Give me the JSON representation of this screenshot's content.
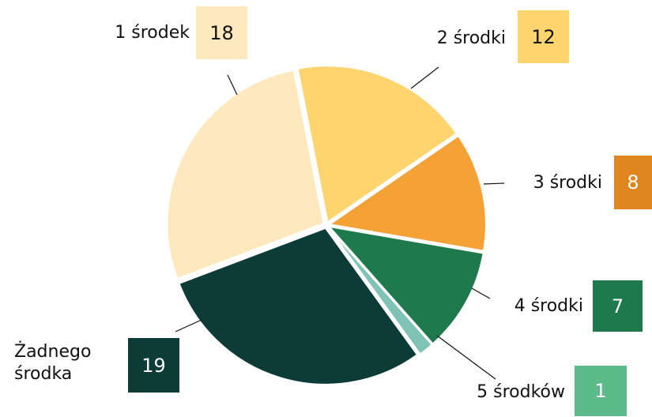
{
  "chart_data": {
    "type": "pie",
    "categories": [
      "2 środki",
      "3 środki",
      "4 środki",
      "5 środków",
      "Żadnego środka",
      "1 środek"
    ],
    "values": [
      12,
      8,
      7,
      1,
      19,
      18
    ],
    "colors": [
      "#fed46e",
      "#f4a136",
      "#1e7a4c",
      "#7fc3b5",
      "#0c3b38",
      "#fde9bd"
    ],
    "label_box_colors": [
      "#fed46e",
      "#e0861e",
      "#1e7a4c",
      "#5dba8a",
      "#0c3b38",
      "#fde9bd"
    ]
  }
}
